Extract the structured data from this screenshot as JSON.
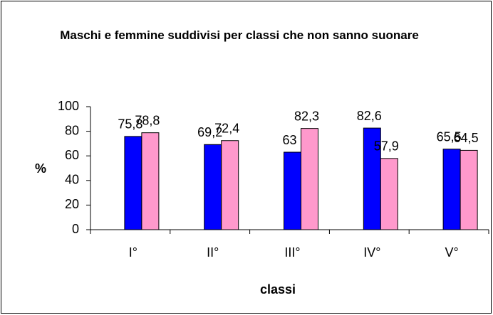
{
  "chart_data": {
    "type": "bar",
    "title": "Maschi e femmine suddivisi per classi che non sanno suonare",
    "x_label": "classi",
    "y_label": "%",
    "categories": [
      "I°",
      "II°",
      "III°",
      "IV°",
      "V°"
    ],
    "series": [
      {
        "color": "#0000ff",
        "values": [
          75.8,
          69.2,
          63,
          82.6,
          65.5
        ],
        "value_labels": [
          "75,8",
          "69,2",
          "63",
          "82,6",
          "65,5"
        ]
      },
      {
        "color": "#ff99cc",
        "values": [
          78.8,
          72.4,
          82.3,
          57.9,
          64.5
        ],
        "value_labels": [
          "78,8",
          "72,4",
          "82,3",
          "57,9",
          "64,5"
        ]
      }
    ],
    "ylim": [
      0,
      100
    ],
    "yticks": [
      0,
      20,
      40,
      60,
      80,
      100
    ],
    "grid": false
  }
}
